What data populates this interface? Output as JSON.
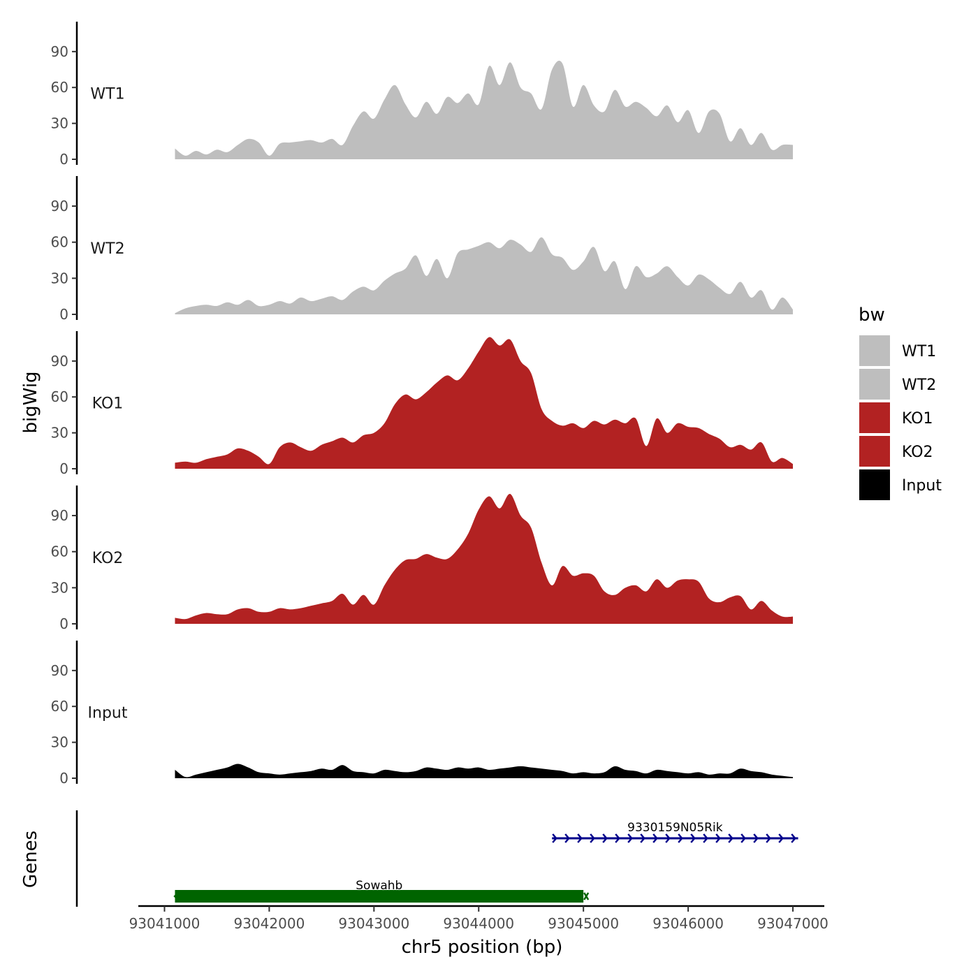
{
  "chart_data": {
    "type": "area",
    "ylabel": "bigWig",
    "xlabel": "chr5 position (bp)",
    "genes_label": "Genes",
    "xlim": [
      93040750,
      93047300
    ],
    "ylim": [
      0,
      115
    ],
    "yticks": [
      0,
      30,
      60,
      90
    ],
    "xticks": [
      93041000,
      93042000,
      93043000,
      93044000,
      93045000,
      93046000,
      93047000
    ],
    "xtick_labels": [
      "93041000",
      "93042000",
      "93043000",
      "93044000",
      "93045000",
      "93046000",
      "93047000"
    ],
    "legend": {
      "title": "bw",
      "entries": [
        {
          "label": "WT1",
          "color": "#bebebe"
        },
        {
          "label": "WT2",
          "color": "#bebebe"
        },
        {
          "label": "KO1",
          "color": "#b22222"
        },
        {
          "label": "KO2",
          "color": "#b22222"
        },
        {
          "label": "Input",
          "color": "#000000"
        }
      ]
    },
    "x": [
      93041100,
      93041200,
      93041300,
      93041400,
      93041500,
      93041600,
      93041700,
      93041800,
      93041900,
      93042000,
      93042100,
      93042200,
      93042300,
      93042400,
      93042500,
      93042600,
      93042700,
      93042800,
      93042900,
      93043000,
      93043100,
      93043200,
      93043300,
      93043400,
      93043500,
      93043600,
      93043700,
      93043800,
      93043900,
      93044000,
      93044100,
      93044200,
      93044300,
      93044400,
      93044500,
      93044600,
      93044700,
      93044800,
      93044900,
      93045000,
      93045100,
      93045200,
      93045300,
      93045400,
      93045500,
      93045600,
      93045700,
      93045800,
      93045900,
      93046000,
      93046100,
      93046200,
      93046300,
      93046400,
      93046500,
      93046600,
      93046700,
      93046800,
      93046900,
      93047000
    ],
    "series": [
      {
        "name": "WT1",
        "color": "#bebebe",
        "values": [
          9,
          3,
          7,
          4,
          8,
          6,
          12,
          17,
          14,
          3,
          13,
          14,
          15,
          16,
          14,
          17,
          12,
          28,
          40,
          34,
          50,
          62,
          46,
          35,
          48,
          38,
          52,
          47,
          55,
          46,
          78,
          62,
          81,
          60,
          55,
          42,
          75,
          80,
          44,
          62,
          45,
          40,
          58,
          44,
          48,
          43,
          36,
          45,
          31,
          41,
          22,
          40,
          38,
          15,
          26,
          12,
          22,
          8,
          12,
          12
        ]
      },
      {
        "name": "WT2",
        "color": "#bebebe",
        "values": [
          1,
          5,
          7,
          8,
          7,
          10,
          8,
          12,
          7,
          8,
          11,
          9,
          14,
          11,
          13,
          15,
          12,
          19,
          23,
          20,
          28,
          34,
          38,
          49,
          32,
          46,
          30,
          51,
          54,
          57,
          60,
          55,
          62,
          58,
          52,
          64,
          50,
          47,
          37,
          44,
          56,
          36,
          44,
          21,
          40,
          31,
          34,
          40,
          31,
          24,
          33,
          29,
          22,
          17,
          27,
          14,
          20,
          4,
          14,
          4
        ]
      },
      {
        "name": "KO1",
        "color": "#b22222",
        "values": [
          5,
          6,
          5,
          8,
          10,
          12,
          17,
          15,
          10,
          4,
          18,
          22,
          18,
          15,
          20,
          23,
          26,
          22,
          28,
          30,
          38,
          54,
          62,
          58,
          64,
          72,
          78,
          74,
          84,
          98,
          110,
          103,
          108,
          90,
          80,
          50,
          40,
          36,
          38,
          34,
          40,
          37,
          41,
          38,
          42,
          19,
          42,
          30,
          38,
          35,
          34,
          29,
          25,
          18,
          20,
          16,
          22,
          6,
          9,
          4
        ]
      },
      {
        "name": "KO2",
        "color": "#b22222",
        "values": [
          5,
          4,
          7,
          9,
          8,
          8,
          12,
          13,
          10,
          10,
          13,
          12,
          13,
          15,
          17,
          19,
          25,
          16,
          24,
          16,
          32,
          45,
          53,
          54,
          58,
          55,
          54,
          62,
          75,
          95,
          106,
          96,
          108,
          90,
          80,
          51,
          32,
          48,
          40,
          42,
          40,
          27,
          24,
          30,
          32,
          27,
          37,
          30,
          36,
          37,
          35,
          21,
          18,
          22,
          23,
          12,
          19,
          11,
          6,
          6
        ]
      },
      {
        "name": "Input",
        "color": "#000000",
        "values": [
          7,
          1,
          3,
          5,
          7,
          9,
          12,
          9,
          5,
          4,
          3,
          4,
          5,
          6,
          8,
          7,
          11,
          6,
          5,
          4,
          7,
          6,
          5,
          6,
          9,
          8,
          7,
          9,
          8,
          9,
          7,
          8,
          9,
          10,
          9,
          8,
          7,
          6,
          4,
          5,
          4,
          5,
          10,
          7,
          6,
          4,
          7,
          6,
          5,
          4,
          5,
          3,
          4,
          4,
          8,
          6,
          5,
          3,
          2,
          1
        ]
      }
    ],
    "genes": [
      {
        "name": "9330159N05Rik",
        "start": 93044700,
        "end": 93047050,
        "strand": "+",
        "color": "#00008b",
        "style": "line"
      },
      {
        "name": "Sowahb",
        "start": 93041100,
        "end": 93045000,
        "strand": "-",
        "color": "#006400",
        "style": "block"
      }
    ]
  }
}
